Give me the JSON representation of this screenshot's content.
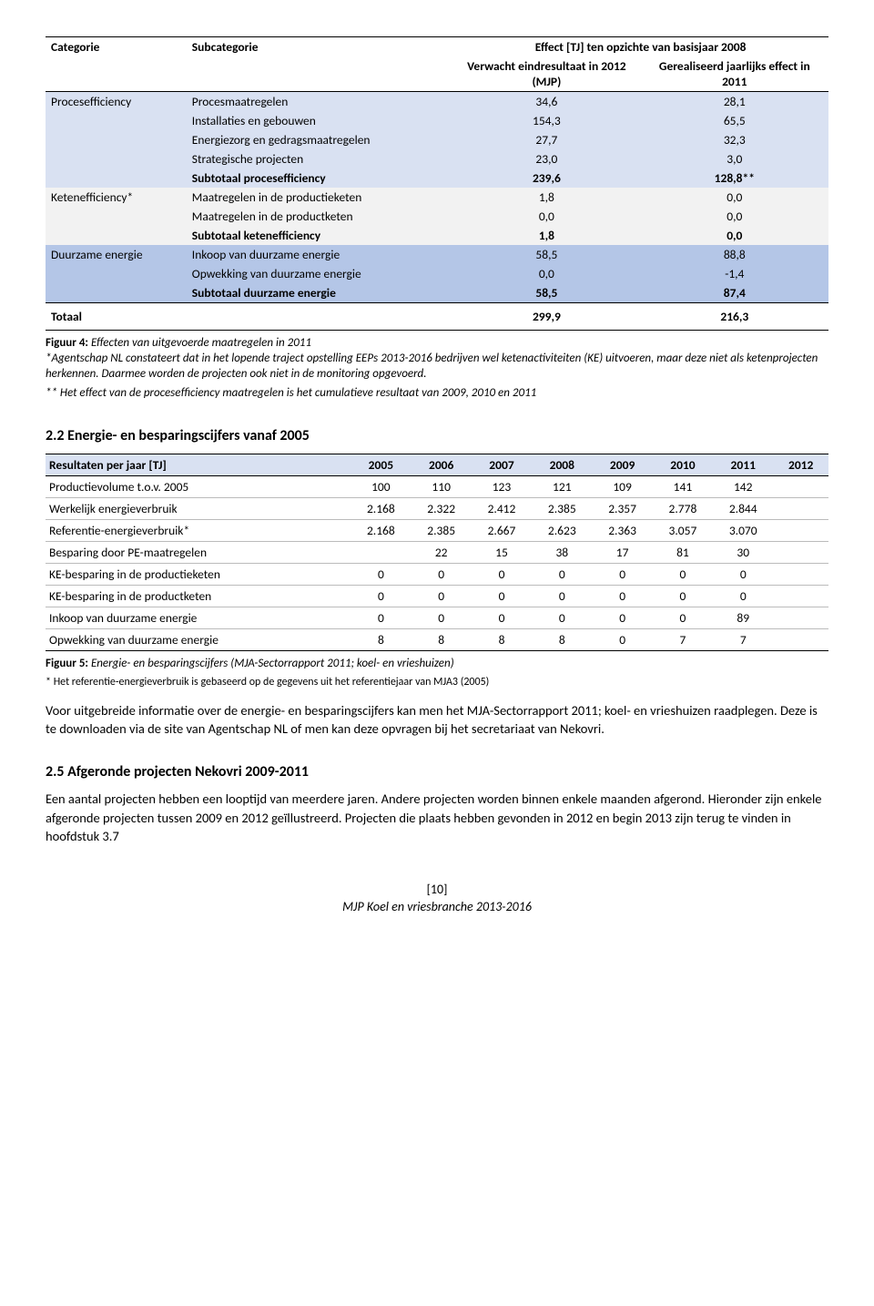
{
  "table1": {
    "headers": {
      "cat": "Categorie",
      "subcat": "Subcategorie",
      "effect": "Effect [TJ] ten opzichte van basisjaar 2008",
      "col1": "Verwacht eindresultaat in 2012 (MJP)",
      "col2": "Gerealiseerd jaarlijks effect in 2011"
    },
    "groups": [
      {
        "cat": "Procesefficiency",
        "band": "band1",
        "rows": [
          {
            "label": "Procesmaatregelen",
            "v1": "34,6",
            "v2": "28,1"
          },
          {
            "label": "Installaties en gebouwen",
            "v1": "154,3",
            "v2": "65,5"
          },
          {
            "label": "Energiezorg en gedragsmaatregelen",
            "v1": "27,7",
            "v2": "32,3"
          },
          {
            "label": "Strategische projecten",
            "v1": "23,0",
            "v2": "3,0"
          },
          {
            "label": "Subtotaal procesefficiency",
            "v1": "239,6",
            "v2": "128,8**",
            "bold": true
          }
        ]
      },
      {
        "cat": "Ketenefficiency*",
        "band": "band2",
        "rows": [
          {
            "label": "Maatregelen in de productieketen",
            "v1": "1,8",
            "v2": "0,0"
          },
          {
            "label": "Maatregelen in de productketen",
            "v1": "0,0",
            "v2": "0,0"
          },
          {
            "label": "Subtotaal ketenefficiency",
            "v1": "1,8",
            "v2": "0,0",
            "bold": true
          }
        ]
      },
      {
        "cat": "Duurzame energie",
        "band": "band3",
        "rows": [
          {
            "label": "Inkoop van duurzame energie",
            "v1": "58,5",
            "v2": "88,8"
          },
          {
            "label": "Opwekking van duurzame energie",
            "v1": "0,0",
            "v2": "-1,4"
          },
          {
            "label": "Subtotaal duurzame energie",
            "v1": "58,5",
            "v2": "87,4",
            "bold": true
          }
        ]
      }
    ],
    "total": {
      "label": "Totaal",
      "v1": "299,9",
      "v2": "216,3"
    }
  },
  "caption1": {
    "bold": "Figuur 4:",
    "italic": " Effecten van uitgevoerde maatregelen in 2011"
  },
  "note1a": "*Agentschap NL constateert dat in het lopende traject opstelling EEPs 2013-2016 bedrijven wel ketenactiviteiten (KE) uitvoeren, maar deze niet als ketenprojecten herkennen. Daarmee worden de projecten ook niet in de monitoring opgevoerd.",
  "note1b": "** Het effect van de procesefficiency maatregelen is het cumulatieve resultaat van 2009, 2010 en 2011",
  "section22": "2.2 Energie- en besparingscijfers vanaf 2005",
  "table2": {
    "headers": [
      "Resultaten per jaar [TJ]",
      "2005",
      "2006",
      "2007",
      "2008",
      "2009",
      "2010",
      "2011",
      "2012"
    ],
    "rows": [
      [
        "Productievolume t.o.v. 2005",
        "100",
        "110",
        "123",
        "121",
        "109",
        "141",
        "142",
        ""
      ],
      [
        "Werkelijk energieverbruik",
        "2.168",
        "2.322",
        "2.412",
        "2.385",
        "2.357",
        "2.778",
        "2.844",
        ""
      ],
      [
        "Referentie-energieverbruik*",
        "2.168",
        "2.385",
        "2.667",
        "2.623",
        "2.363",
        "3.057",
        "3.070",
        ""
      ],
      [
        "Besparing door PE-maatregelen",
        "",
        "22",
        "15",
        "38",
        "17",
        "81",
        "30",
        ""
      ],
      [
        "KE-besparing in de productieketen",
        "0",
        "0",
        "0",
        "0",
        "0",
        "0",
        "0",
        ""
      ],
      [
        "KE-besparing in de productketen",
        "0",
        "0",
        "0",
        "0",
        "0",
        "0",
        "0",
        ""
      ],
      [
        "Inkoop van duurzame energie",
        "0",
        "0",
        "0",
        "0",
        "0",
        "0",
        "89",
        ""
      ],
      [
        "Opwekking van duurzame energie",
        "8",
        "8",
        "8",
        "8",
        "0",
        "7",
        "7",
        ""
      ]
    ]
  },
  "caption2": {
    "bold": "Figuur 5:",
    "italic": " Energie- en besparingscijfers (MJA-Sectorrapport 2011; koel- en vrieshuizen)"
  },
  "footnote2": "* Het referentie-energieverbruik is gebaseerd op de gegevens uit het referentiejaar van MJA3 (2005)",
  "para1": "Voor uitgebreide informatie over de energie- en besparingscijfers kan men het MJA-Sectorrapport 2011; koel- en vrieshuizen raadplegen. Deze is te downloaden via de site van Agentschap NL of men kan deze opvragen bij het secretariaat van Nekovri.",
  "section25": "2.5 Afgeronde projecten Nekovri 2009-2011",
  "para2": "Een aantal projecten hebben een looptijd van meerdere jaren. Andere projecten worden binnen enkele maanden afgerond. Hieronder zijn enkele afgeronde projecten tussen 2009 en 2012 geïllustreerd. Projecten die plaats hebben gevonden in 2012 en begin 2013 zijn terug te vinden in hoofdstuk 3.7",
  "pageNum": "[10]",
  "pageFooter": "MJP Koel en vriesbranche 2013-2016"
}
